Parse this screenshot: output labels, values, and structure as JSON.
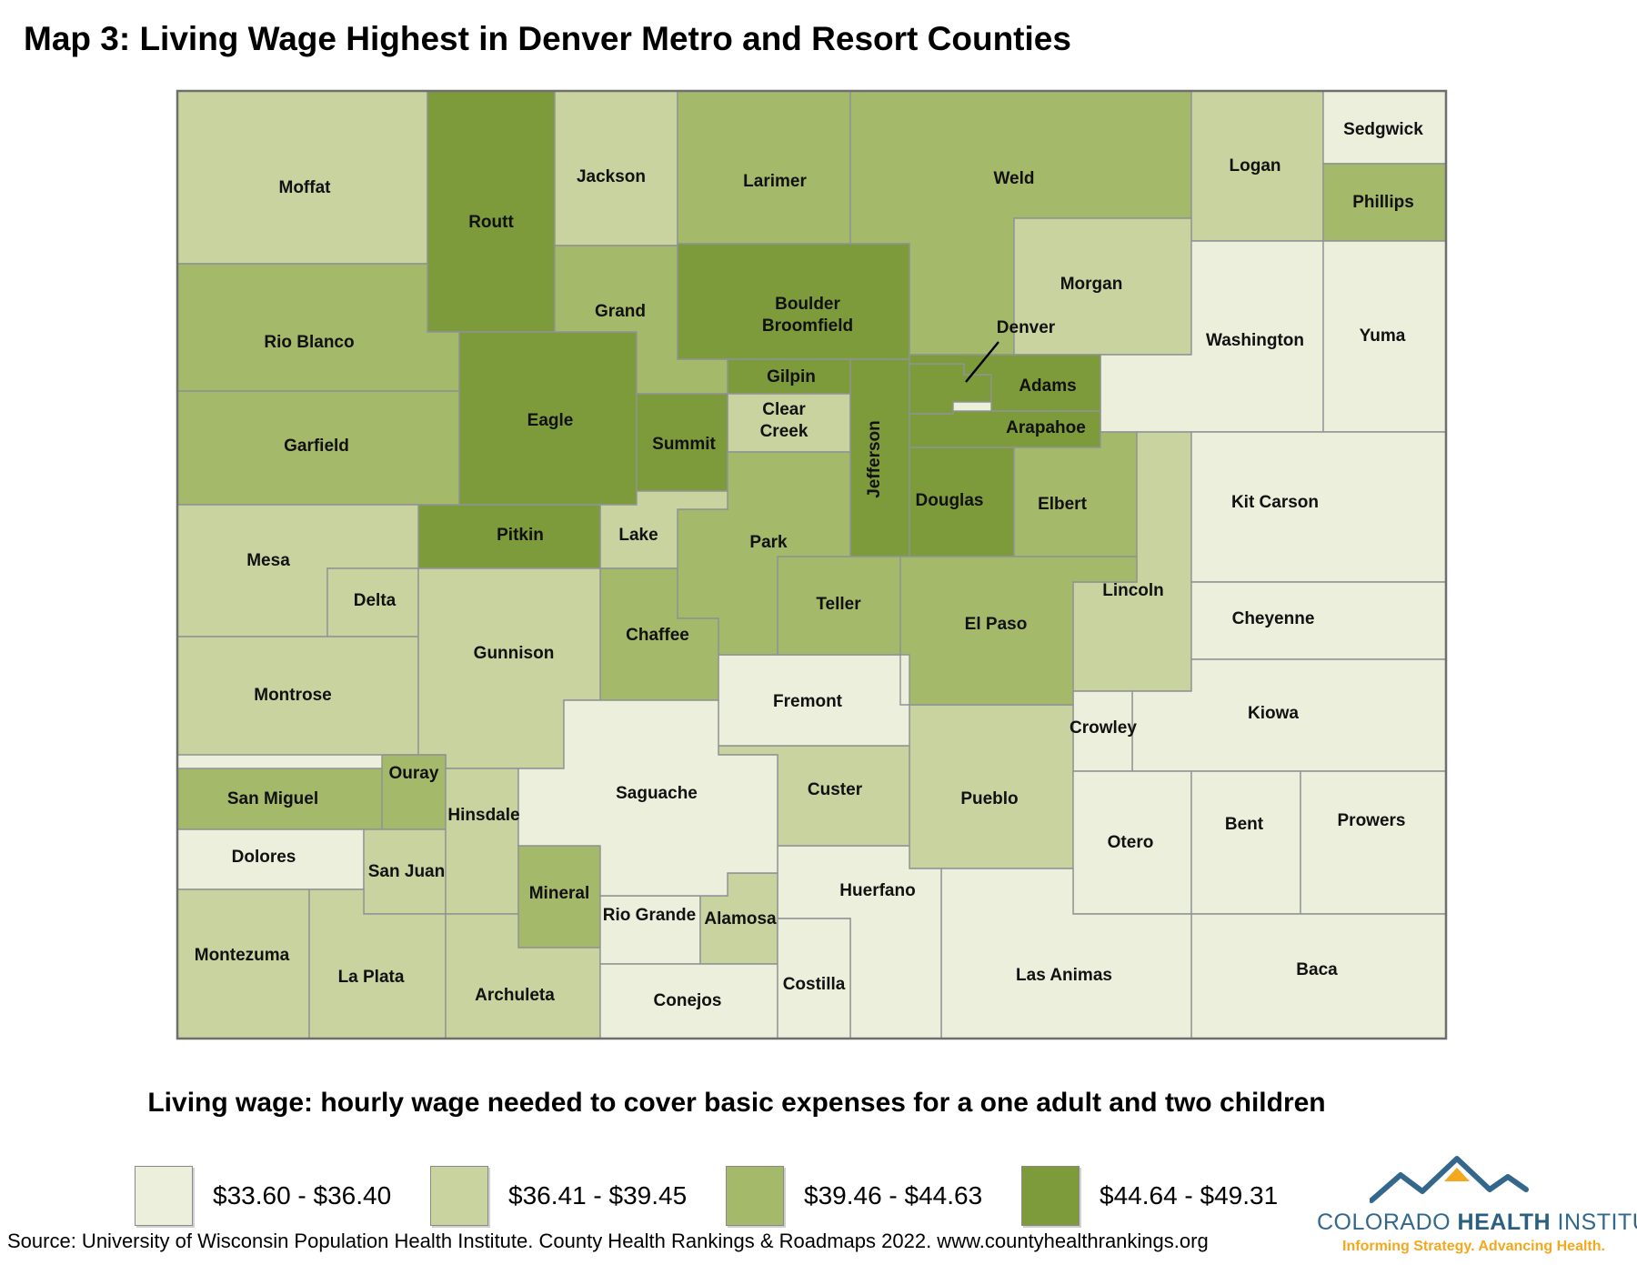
{
  "title": "Map 3: Living Wage Highest in Denver Metro and Resort Counties",
  "subtitle": "Living wage: hourly wage needed to cover basic expenses for a one adult and two children",
  "source": "Source: University of Wisconsin Population Health Institute. County Health Rankings & Roadmaps 2022. www.countyhealthrankings.org",
  "legend": {
    "items": [
      {
        "label": "$33.60 - $36.40",
        "color": "#ebefdc"
      },
      {
        "label": "$36.41 - $39.45",
        "color": "#c9d3a0"
      },
      {
        "label": "$39.46 - $44.63",
        "color": "#a5b96b"
      },
      {
        "label": "$44.64 - $49.31",
        "color": "#7d9b3b"
      }
    ]
  },
  "logo": {
    "word1": "COLORADO",
    "word2": "HEALTH",
    "word3": "INSTITUTE",
    "tagline": "Informing Strategy. Advancing Health.",
    "blue": "#33688c",
    "orange": "#f3a81d"
  },
  "chart_data": {
    "type": "choropleth",
    "region": "Colorado counties",
    "title": "Map 3: Living Wage Highest in Denver Metro and Resort Counties",
    "measure": "Living wage: hourly wage needed to cover basic expenses for a one adult and two children",
    "buckets": [
      "$33.60 - $36.40",
      "$36.41 - $39.45",
      "$39.46 - $44.63",
      "$44.64 - $49.31"
    ],
    "counties": [
      {
        "name": "Moffat",
        "category": 2
      },
      {
        "name": "Routt",
        "category": 4
      },
      {
        "name": "Jackson",
        "category": 2
      },
      {
        "name": "Larimer",
        "category": 3
      },
      {
        "name": "Weld",
        "category": 3
      },
      {
        "name": "Logan",
        "category": 2
      },
      {
        "name": "Sedgwick",
        "category": 1
      },
      {
        "name": "Phillips",
        "category": 3
      },
      {
        "name": "Morgan",
        "category": 2
      },
      {
        "name": "Washington",
        "category": 1
      },
      {
        "name": "Yuma",
        "category": 1
      },
      {
        "name": "Rio Blanco",
        "category": 3
      },
      {
        "name": "Garfield",
        "category": 3
      },
      {
        "name": "Eagle",
        "category": 4
      },
      {
        "name": "Grand",
        "category": 3
      },
      {
        "name": "Boulder Broomfield",
        "category": 4
      },
      {
        "name": "Gilpin",
        "category": 4
      },
      {
        "name": "Clear Creek",
        "category": 2
      },
      {
        "name": "Summit",
        "category": 4
      },
      {
        "name": "Jefferson",
        "category": 4
      },
      {
        "name": "Denver",
        "category": 4
      },
      {
        "name": "Adams",
        "category": 4
      },
      {
        "name": "Arapahoe",
        "category": 4
      },
      {
        "name": "Douglas",
        "category": 4
      },
      {
        "name": "Elbert",
        "category": 3
      },
      {
        "name": "Lincoln",
        "category": 2
      },
      {
        "name": "Kit Carson",
        "category": 1
      },
      {
        "name": "Cheyenne",
        "category": 1
      },
      {
        "name": "Kiowa",
        "category": 1
      },
      {
        "name": "Crowley",
        "category": 1
      },
      {
        "name": "Pueblo",
        "category": 2
      },
      {
        "name": "Otero",
        "category": 1
      },
      {
        "name": "Bent",
        "category": 1
      },
      {
        "name": "Prowers",
        "category": 1
      },
      {
        "name": "Baca",
        "category": 1
      },
      {
        "name": "Las Animas",
        "category": 1
      },
      {
        "name": "Huerfano",
        "category": 1
      },
      {
        "name": "Custer",
        "category": 2
      },
      {
        "name": "Fremont",
        "category": 1
      },
      {
        "name": "Teller",
        "category": 3
      },
      {
        "name": "El Paso",
        "category": 3
      },
      {
        "name": "Park",
        "category": 3
      },
      {
        "name": "Lake",
        "category": 2
      },
      {
        "name": "Chaffee",
        "category": 3
      },
      {
        "name": "Pitkin",
        "category": 4
      },
      {
        "name": "Mesa",
        "category": 2
      },
      {
        "name": "Delta",
        "category": 2
      },
      {
        "name": "Montrose",
        "category": 2
      },
      {
        "name": "Gunnison",
        "category": 2
      },
      {
        "name": "Ouray",
        "category": 3
      },
      {
        "name": "San Miguel",
        "category": 3
      },
      {
        "name": "Dolores",
        "category": 1
      },
      {
        "name": "San Juan",
        "category": 2
      },
      {
        "name": "Hinsdale",
        "category": 2
      },
      {
        "name": "Mineral",
        "category": 3
      },
      {
        "name": "Montezuma",
        "category": 2
      },
      {
        "name": "La Plata",
        "category": 2
      },
      {
        "name": "Archuleta",
        "category": 2
      },
      {
        "name": "Rio Grande",
        "category": 1
      },
      {
        "name": "Alamosa",
        "category": 2
      },
      {
        "name": "Conejos",
        "category": 1
      },
      {
        "name": "Costilla",
        "category": 1
      },
      {
        "name": "Saguache",
        "category": 1
      }
    ],
    "annotations": [
      {
        "county": "Denver",
        "style": "label-with-callout-line"
      }
    ]
  }
}
